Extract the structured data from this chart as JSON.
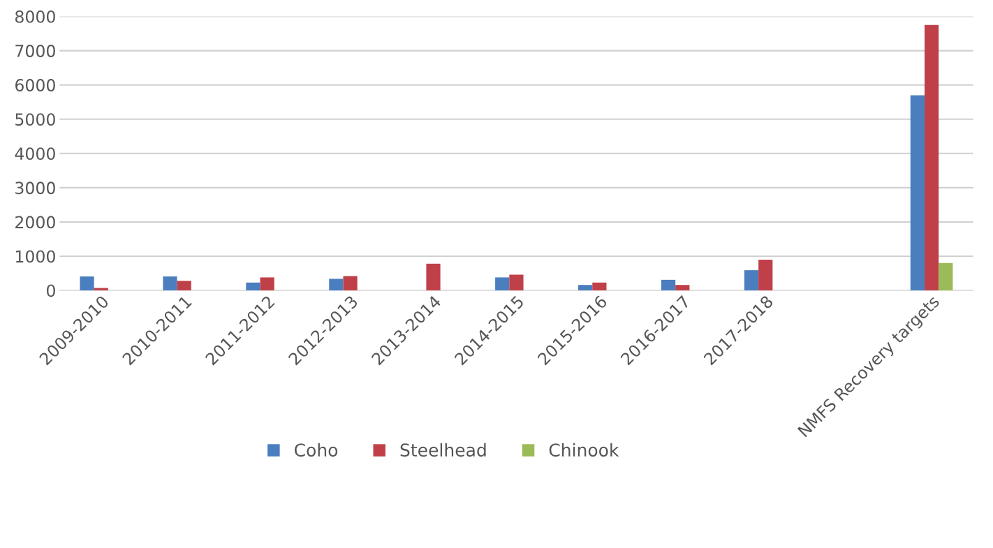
{
  "chart_data": {
    "type": "bar",
    "categories": [
      "2009-2010",
      "2010-2011",
      "2011-2012",
      "2012-2013",
      "2013-2014",
      "2014-2015",
      "2015-2016",
      "2016-2017",
      "2017-2018",
      null,
      "NMFS Recovery targets"
    ],
    "series": [
      {
        "name": "Coho",
        "color": "#4a7ebf",
        "values": [
          410,
          410,
          230,
          340,
          null,
          380,
          160,
          310,
          590,
          null,
          5700
        ]
      },
      {
        "name": "Steelhead",
        "color": "#c0404a",
        "values": [
          70,
          280,
          380,
          420,
          780,
          460,
          230,
          160,
          900,
          null,
          7750
        ]
      },
      {
        "name": "Chinook",
        "color": "#9bbb59",
        "values": [
          null,
          null,
          null,
          null,
          null,
          null,
          null,
          null,
          null,
          null,
          800
        ]
      }
    ],
    "ylim": [
      0,
      8000
    ],
    "yticks": [
      0,
      1000,
      2000,
      3000,
      4000,
      5000,
      6000,
      7000,
      8000
    ],
    "grid": "y",
    "legend": "bottom"
  }
}
